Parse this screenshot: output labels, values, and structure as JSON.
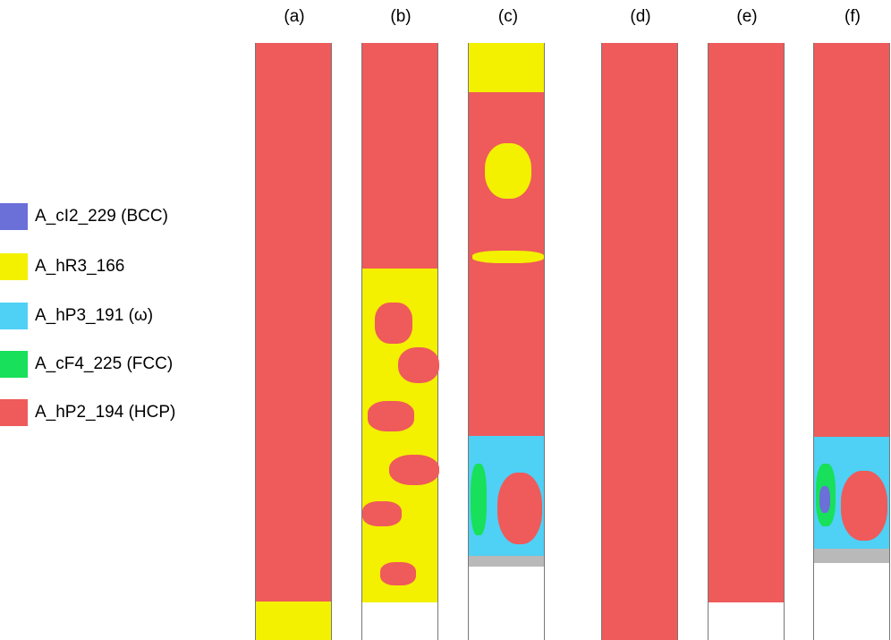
{
  "legend": {
    "items": [
      {
        "label": "A_cI2_229 (BCC)",
        "color": "#6b6fd8"
      },
      {
        "label": "A_hR3_166",
        "color": "#f3f000"
      },
      {
        "label": "A_hP3_191 (ω)",
        "color": "#4fd0f5"
      },
      {
        "label": "A_cF4_225 (FCC)",
        "color": "#18e05a"
      },
      {
        "label": "A_hP2_194 (HCP)",
        "color": "#ef5a5a"
      }
    ]
  },
  "panels": [
    {
      "label": "(a)"
    },
    {
      "label": "(b)"
    },
    {
      "label": "(c)"
    },
    {
      "label": "(d)"
    },
    {
      "label": "(e)"
    },
    {
      "label": "(f)"
    }
  ]
}
